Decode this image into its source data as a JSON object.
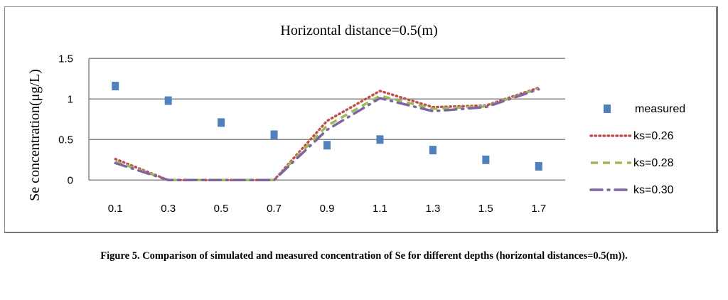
{
  "chart_data": {
    "type": "line",
    "title": "Horizontal distance=0.5(m)",
    "xlabel": "",
    "ylabel": "Se concentration(μg/L)",
    "categories": [
      "0.1",
      "0.3",
      "0.5",
      "0.7",
      "0.9",
      "1.1",
      "1.3",
      "1.5",
      "1.7"
    ],
    "ylim": [
      0,
      1.5
    ],
    "yticks": [
      "0",
      "0.5",
      "1",
      "1.5"
    ],
    "grid": true,
    "legend_position": "right",
    "series": [
      {
        "name": "measured",
        "style": "markers",
        "color": "#4F81BD",
        "values": [
          1.16,
          0.98,
          0.71,
          0.56,
          0.43,
          0.5,
          0.37,
          0.25,
          0.17
        ]
      },
      {
        "name": "ks=0.26",
        "style": "dotted",
        "color": "#C0504D",
        "values": [
          0.26,
          0,
          0,
          0,
          0.73,
          1.1,
          0.9,
          0.92,
          1.14
        ]
      },
      {
        "name": "ks=0.28",
        "style": "dashed",
        "color": "#9BBB59",
        "values": [
          0.23,
          0,
          0,
          0,
          0.67,
          1.04,
          0.88,
          0.91,
          1.13
        ]
      },
      {
        "name": "ks=0.30",
        "style": "dashdot",
        "color": "#8064A2",
        "values": [
          0.21,
          0,
          0,
          0,
          0.62,
          1.01,
          0.85,
          0.9,
          1.12
        ]
      }
    ]
  },
  "caption": "Figure 5. Comparison of simulated and measured concentration of Se for different depths (horizontal distances=0.5(m)).",
  "trailing_mark": "."
}
